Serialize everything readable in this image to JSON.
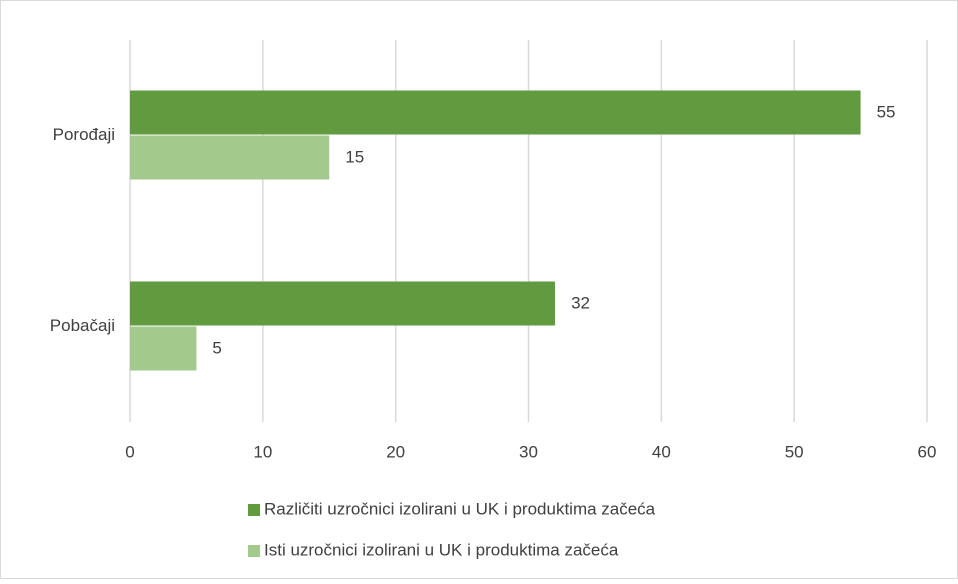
{
  "chart_data": {
    "type": "bar",
    "orientation": "horizontal",
    "categories": [
      "Porođaji",
      "Pobačaji"
    ],
    "series": [
      {
        "name": "Različiti uzročnici izolirani u UK i produktima začeća",
        "color": "#629a3f",
        "values": [
          55,
          32
        ]
      },
      {
        "name": "Isti uzročnici izolirani u UK i produktima začeća",
        "color": "#a3c98c",
        "values": [
          15,
          5
        ]
      }
    ],
    "xlim": [
      0,
      60
    ],
    "xticks": [
      0,
      10,
      20,
      30,
      40,
      50,
      60
    ],
    "grid": true,
    "legend": "bottom"
  }
}
